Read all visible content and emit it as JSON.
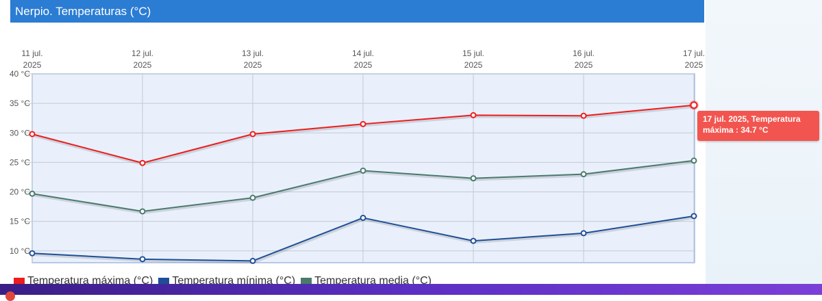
{
  "header": {
    "title": "Nerpio. Temperaturas (°C)"
  },
  "colors": {
    "header_bg": "#2b7cd3",
    "plot_bg": "#e9f0fb",
    "plot_border": "#9fb9e3",
    "max": "#ee1c1c",
    "min": "#1f4e96",
    "media": "#4a7a6c",
    "tooltip_bg": "#f2554f"
  },
  "tooltip": {
    "line1": "17 jul. 2025, Temperatura",
    "line2": "máxima : 34.7 °C"
  },
  "chart_data": {
    "type": "line",
    "title": "Nerpio. Temperaturas (°C)",
    "categories": [
      [
        "11 jul.",
        "2025"
      ],
      [
        "12 jul.",
        "2025"
      ],
      [
        "13 jul.",
        "2025"
      ],
      [
        "14 jul.",
        "2025"
      ],
      [
        "15 jul.",
        "2025"
      ],
      [
        "16 jul.",
        "2025"
      ],
      [
        "17 jul.",
        "2025"
      ]
    ],
    "y_ticks": [
      {
        "value": 40,
        "label": "40 °C"
      },
      {
        "value": 35,
        "label": "35 °C"
      },
      {
        "value": 30,
        "label": "30 °C"
      },
      {
        "value": 25,
        "label": "25 °C"
      },
      {
        "value": 20,
        "label": "20 °C"
      },
      {
        "value": 15,
        "label": "15 °C"
      },
      {
        "value": 10,
        "label": "10 °C"
      }
    ],
    "ylim": [
      8,
      40
    ],
    "x_axis_position": "top",
    "grid": true,
    "legend_position": "bottom-left",
    "series": [
      {
        "name": "Temperatura máxima (°C)",
        "color": "#ee1c1c",
        "values": [
          29.8,
          24.9,
          29.8,
          31.5,
          33.0,
          32.9,
          34.7
        ]
      },
      {
        "name": "Temperatura mínima (°C)",
        "color": "#1f4e96",
        "values": [
          9.6,
          8.6,
          8.3,
          15.6,
          11.7,
          13.0,
          15.9
        ]
      },
      {
        "name": "Temperatura media (°C)",
        "color": "#4a7a6c",
        "values": [
          19.7,
          16.7,
          19.0,
          23.6,
          22.3,
          23.0,
          25.3
        ]
      }
    ],
    "highlighted": {
      "series": 0,
      "index": 6
    }
  }
}
